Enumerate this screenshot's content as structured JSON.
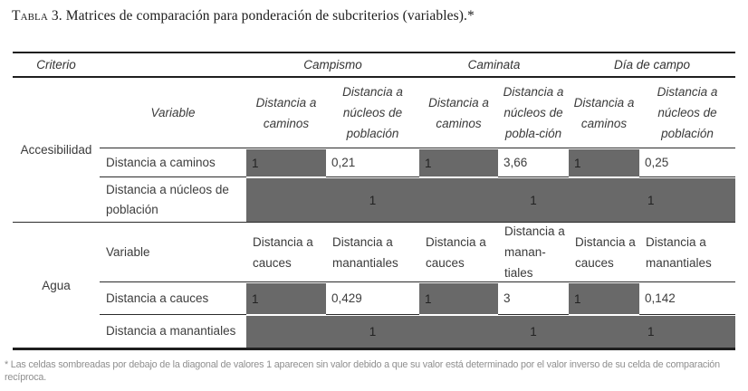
{
  "title": {
    "prefix": "Tabla 3.",
    "text": " Matrices de comparación para ponderación de subcriterios (variables).*"
  },
  "table": {
    "top_headers": {
      "criterio": "Criterio",
      "campismo": "Campismo",
      "caminata": "Caminata",
      "dia_de_campo": "Día de campo"
    },
    "sections": [
      {
        "criterion": "Accesibilidad",
        "variable_label": "Variable",
        "column_headers": [
          "Distancia a caminos",
          "Distancia a núcleos de población",
          "Distancia a caminos",
          "Distancia a núcleos de pobla-ción",
          "Distancia a caminos",
          "Distancia a núcleos de población"
        ],
        "rows": [
          {
            "label": "Distancia a caminos",
            "values": [
              "1",
              "0,21",
              "1",
              "3,66",
              "1",
              "0,25"
            ]
          },
          {
            "label": "Distancia a núcleos de población",
            "diagonal_values": [
              "1",
              "1",
              "1"
            ]
          }
        ]
      },
      {
        "criterion": "Agua",
        "variable_label": "Variable",
        "column_headers": [
          "Distancia a cauces",
          "Distancia a manantiales",
          "Distancia a cauces",
          "Distancia a manan-tiales",
          "Distancia a cauces",
          "Distancia a manantiales"
        ],
        "rows": [
          {
            "label": "Distancia a cauces",
            "values": [
              "1",
              "0,429",
              "1",
              "3",
              "1",
              "0,142"
            ]
          },
          {
            "label": "Distancia a manantiales",
            "diagonal_values": [
              "1",
              "1",
              "1"
            ]
          }
        ]
      }
    ]
  },
  "footnote": "* Las celdas sombreadas por debajo de la diagonal de valores 1 aparecen sin valor debido a que su valor está determinado por el valor inverso de su celda de comparación recíproca.",
  "colors": {
    "shaded_cell": "#696969",
    "rule": "#1f1f1f",
    "body_text": "#3d3d3d",
    "footnote_text": "#8f8f8f"
  }
}
